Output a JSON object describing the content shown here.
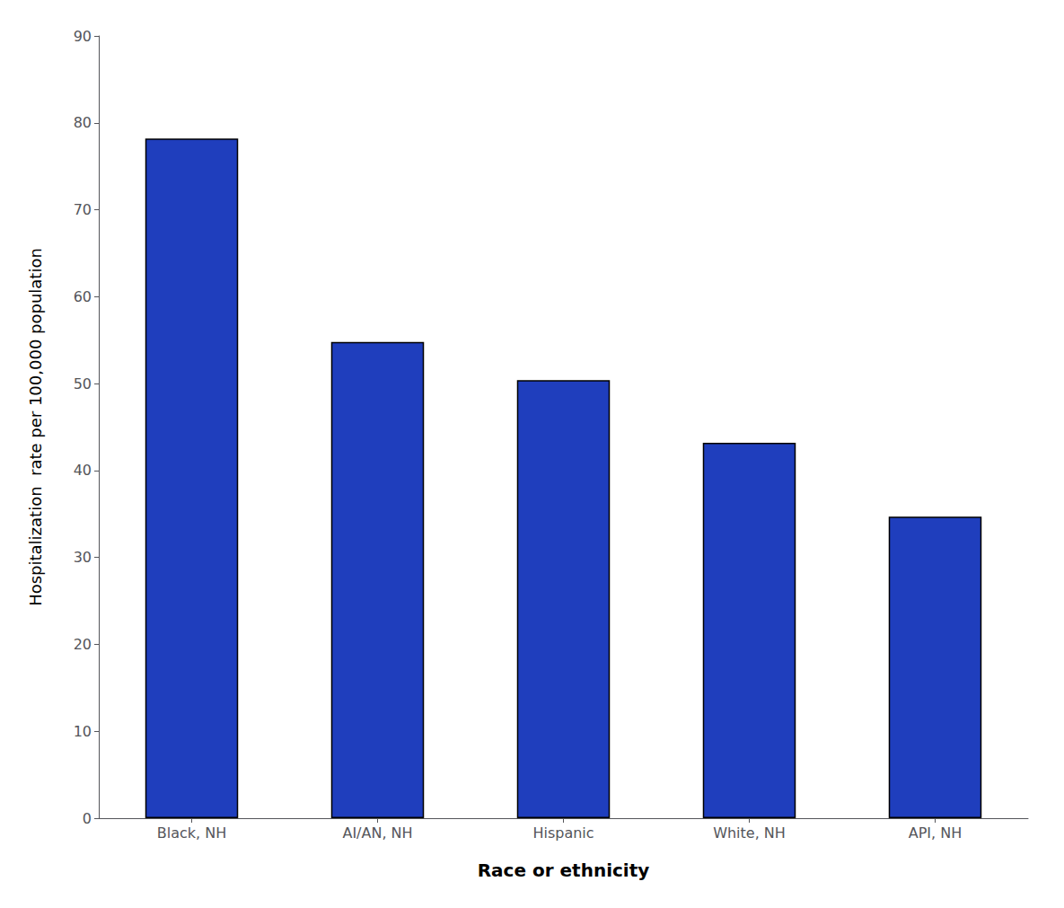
{
  "chart_data": {
    "type": "bar",
    "categories": [
      "Black, NH",
      "AI/AN, NH",
      "Hispanic",
      "White, NH",
      "API, NH"
    ],
    "values": [
      78.2,
      54.8,
      50.4,
      43.2,
      34.7
    ],
    "color": "#1F3EBD",
    "xlabel": "Race or ethnicity",
    "ylabel": "Hospitalization  rate per 100,000 population",
    "ylim": [
      0,
      90
    ],
    "yticks": [
      0,
      10,
      20,
      30,
      40,
      50,
      60,
      70,
      80,
      90
    ],
    "grid": false
  }
}
